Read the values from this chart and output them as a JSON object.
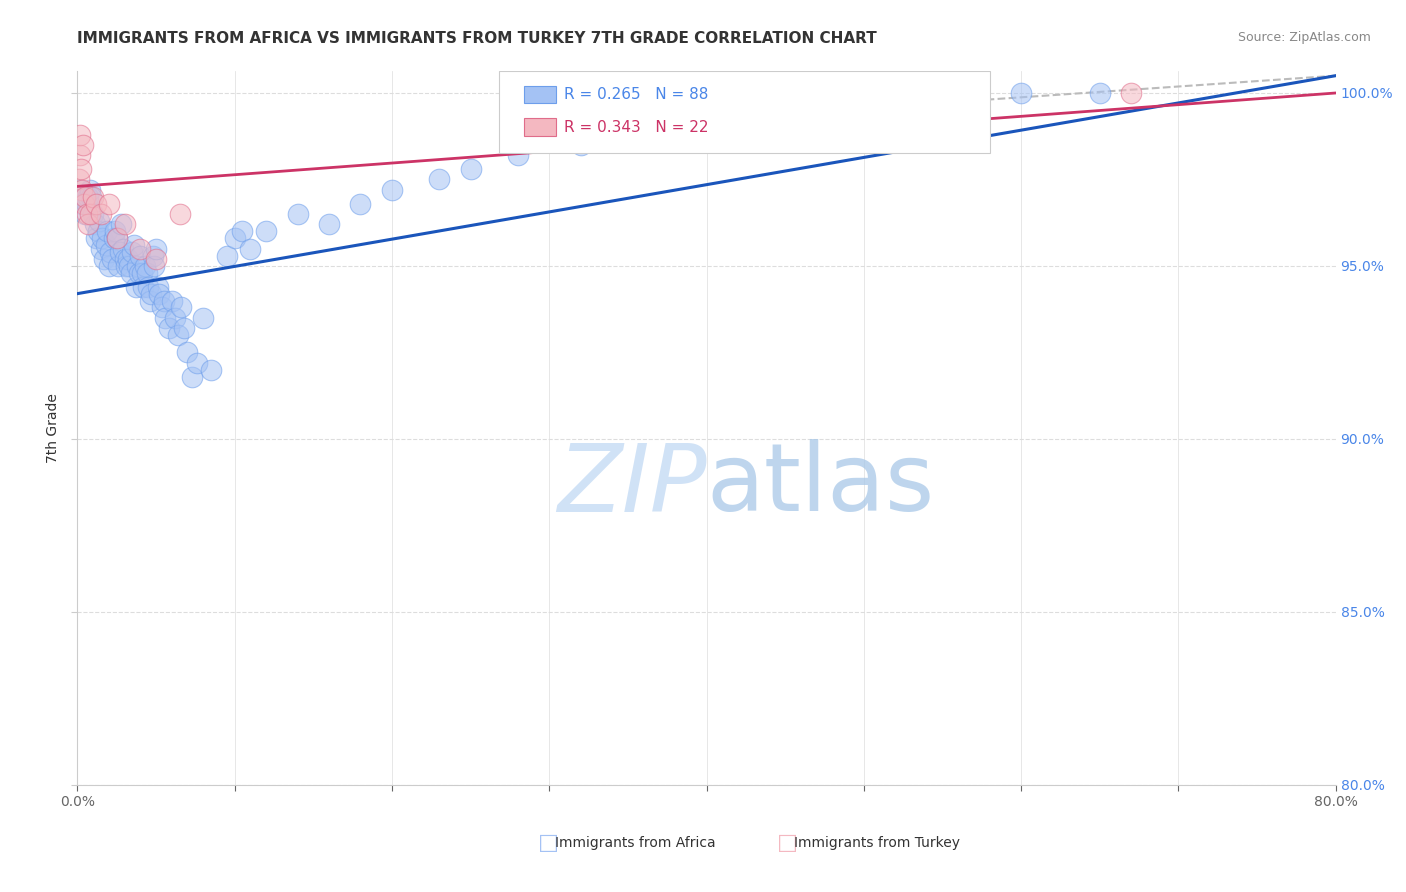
{
  "title": "IMMIGRANTS FROM AFRICA VS IMMIGRANTS FROM TURKEY 7TH GRADE CORRELATION CHART",
  "source": "Source: ZipAtlas.com",
  "ylabel": "7th Grade",
  "x_tick_labels": [
    "0.0%",
    "",
    "",
    "",
    "",
    "",
    "",
    "",
    "80.0%"
  ],
  "y_tick_labels_right": [
    "80.0%",
    "85.0%",
    "90.0%",
    "95.0%",
    "100.0%"
  ],
  "xlim": [
    0.0,
    80.0
  ],
  "ylim": [
    80.0,
    100.625
  ],
  "legend_africa": "Immigrants from Africa",
  "legend_turkey": "Immigrants from Turkey",
  "R_africa": 0.265,
  "N_africa": 88,
  "R_turkey": 0.343,
  "N_turkey": 22,
  "blue_dot_color": "#a4c2f4",
  "pink_dot_color": "#f4b8c1",
  "blue_dot_edge": "#6d9eeb",
  "pink_dot_edge": "#e06c8a",
  "blue_line_color": "#1a55bb",
  "pink_line_color": "#cc3366",
  "gray_dash_color": "#bbbbbb",
  "watermark_color": "#cfe2f3",
  "background_color": "#ffffff",
  "grid_color": "#dddddd",
  "africa_x": [
    0.2,
    0.3,
    0.4,
    0.5,
    0.6,
    0.7,
    0.8,
    0.9,
    1.0,
    1.1,
    1.2,
    1.3,
    1.4,
    1.5,
    1.6,
    1.7,
    1.8,
    1.9,
    2.0,
    2.1,
    2.2,
    2.3,
    2.4,
    2.5,
    2.6,
    2.7,
    2.8,
    2.9,
    3.0,
    3.1,
    3.2,
    3.3,
    3.4,
    3.5,
    3.6,
    3.7,
    3.8,
    3.9,
    4.0,
    4.1,
    4.2,
    4.3,
    4.4,
    4.5,
    4.6,
    4.7,
    4.8,
    4.9,
    5.0,
    5.1,
    5.2,
    5.4,
    5.5,
    5.6,
    5.8,
    6.0,
    6.2,
    6.4,
    6.6,
    6.8,
    7.0,
    7.3,
    7.6,
    8.0,
    8.5,
    9.5,
    10.0,
    10.5,
    11.0,
    12.0,
    14.0,
    16.0,
    18.0,
    20.0,
    23.0,
    25.0,
    28.0,
    32.0,
    36.0,
    40.0,
    42.0,
    44.0,
    46.0,
    50.0,
    55.0,
    60.0,
    65.0
  ],
  "africa_y": [
    97.2,
    96.8,
    97.0,
    96.5,
    96.8,
    97.0,
    97.2,
    97.0,
    96.5,
    96.2,
    95.8,
    96.0,
    96.3,
    95.5,
    95.8,
    95.2,
    95.6,
    96.0,
    95.0,
    95.4,
    95.2,
    95.8,
    96.0,
    95.8,
    95.0,
    95.4,
    96.2,
    95.5,
    95.2,
    95.0,
    95.2,
    95.0,
    94.8,
    95.4,
    95.6,
    94.4,
    95.0,
    94.8,
    95.3,
    94.8,
    94.4,
    95.0,
    94.8,
    94.4,
    94.0,
    94.2,
    95.3,
    95.0,
    95.5,
    94.4,
    94.2,
    93.8,
    94.0,
    93.5,
    93.2,
    94.0,
    93.5,
    93.0,
    93.8,
    93.2,
    92.5,
    91.8,
    92.2,
    93.5,
    92.0,
    95.3,
    95.8,
    96.0,
    95.5,
    96.0,
    96.5,
    96.2,
    96.8,
    97.2,
    97.5,
    97.8,
    98.2,
    98.5,
    98.8,
    99.0,
    99.2,
    99.5,
    99.7,
    99.8,
    100.0,
    100.0,
    100.0
  ],
  "turkey_x": [
    0.1,
    0.15,
    0.2,
    0.25,
    0.3,
    0.35,
    0.4,
    0.5,
    0.6,
    0.7,
    0.8,
    1.0,
    1.2,
    1.5,
    2.0,
    2.5,
    3.0,
    4.0,
    5.0,
    6.5,
    55.0,
    67.0
  ],
  "turkey_y": [
    97.5,
    98.2,
    98.8,
    97.8,
    97.2,
    98.5,
    96.8,
    97.0,
    96.5,
    96.2,
    96.5,
    97.0,
    96.8,
    96.5,
    96.8,
    95.8,
    96.2,
    95.5,
    95.2,
    96.5,
    100.0,
    100.0
  ],
  "blue_trendline_x0": 0.0,
  "blue_trendline_y0": 94.2,
  "blue_trendline_x1": 80.0,
  "blue_trendline_y1": 100.5,
  "pink_trendline_x0": 0.0,
  "pink_trendline_y0": 97.3,
  "pink_trendline_x1": 80.0,
  "pink_trendline_y1": 100.0,
  "gray_dash_x0": 48.0,
  "gray_dash_y0": 99.5,
  "gray_dash_x1": 80.0,
  "gray_dash_y1": 100.5
}
